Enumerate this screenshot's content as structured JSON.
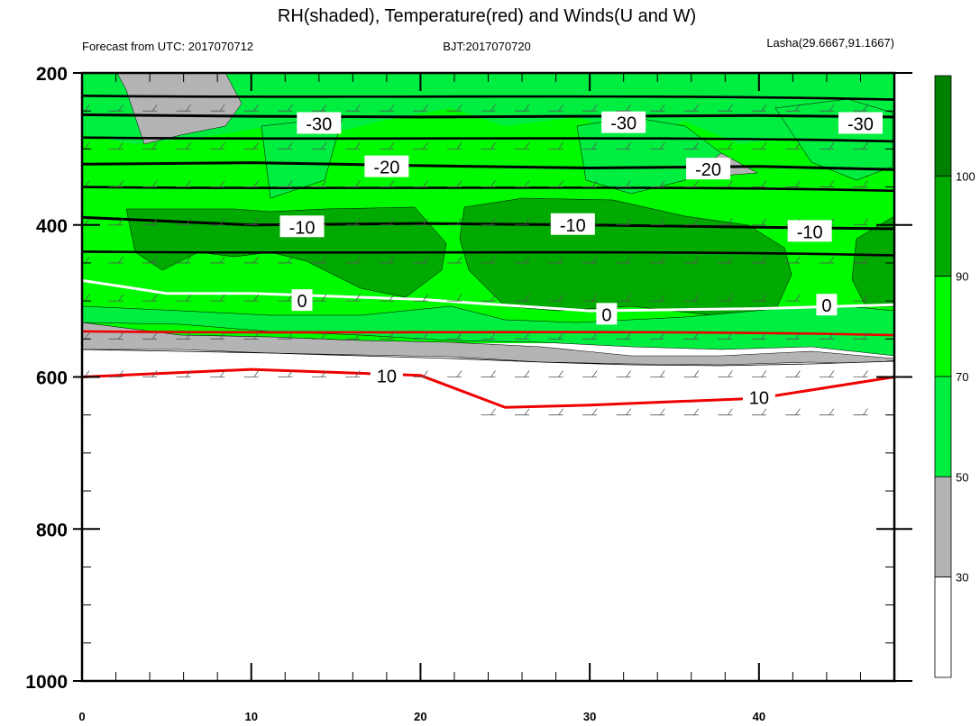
{
  "title": "RH(shaded), Temperature(red) and Winds(U and W)",
  "subtitle_left": "Forecast from UTC: 2017070712",
  "subtitle_center": "BJT:2017070720",
  "subtitle_right": "Lasha(29.6667,91.1667)",
  "colors": {
    "rh_0_30": "#ffffff",
    "rh_30_50": "#b4b4b4",
    "rh_50_70": "#00ee40",
    "rh_70_90": "#00fa00",
    "rh_90_100": "#00aa00",
    "rh_100_plus": "#008000",
    "temperature_positive": "#ee0000",
    "temperature_zero": "#ffffff",
    "temperature_negative": "#000000"
  },
  "chart_data": {
    "type": "contour",
    "x": {
      "min": 0,
      "max": 48,
      "ticks": [
        0,
        10,
        20,
        30,
        40
      ],
      "tick_labels": [
        "0",
        "10",
        "20",
        "30",
        "40"
      ]
    },
    "y": {
      "min": 200,
      "max": 1000,
      "reversed": true,
      "ticks": [
        200,
        400,
        600,
        800,
        1000
      ],
      "tick_labels": [
        "200",
        "400",
        "600",
        "800",
        "1000"
      ]
    },
    "colorbar": {
      "labels": [
        "30",
        "50",
        "70",
        "90",
        "100"
      ],
      "boundaries": [
        30,
        50,
        70,
        90,
        100
      ]
    },
    "temperature_contours": [
      {
        "level": -30,
        "label": "-30",
        "points": [
          [
            0,
            255
          ],
          [
            10,
            257
          ],
          [
            20,
            258
          ],
          [
            30,
            257
          ],
          [
            40,
            256
          ],
          [
            48,
            258
          ]
        ],
        "label_positions": [
          [
            14,
            267
          ],
          [
            32,
            266
          ],
          [
            46,
            267
          ]
        ]
      },
      {
        "level": -20,
        "label": "-20",
        "points": [
          [
            0,
            320
          ],
          [
            10,
            318
          ],
          [
            20,
            322
          ],
          [
            30,
            325
          ],
          [
            40,
            323
          ],
          [
            48,
            327
          ]
        ],
        "label_positions": [
          [
            18,
            324
          ],
          [
            37,
            327
          ]
        ]
      },
      {
        "level": -10,
        "label": "-10",
        "points": [
          [
            0,
            390
          ],
          [
            10,
            400
          ],
          [
            20,
            398
          ],
          [
            30,
            400
          ],
          [
            40,
            403
          ],
          [
            48,
            405
          ]
        ],
        "label_positions": [
          [
            13,
            403
          ],
          [
            29,
            400
          ],
          [
            43,
            409
          ]
        ]
      },
      {
        "level": 0,
        "label": "0",
        "points": [
          [
            0,
            473
          ],
          [
            5,
            490
          ],
          [
            10,
            490
          ],
          [
            20,
            498
          ],
          [
            30,
            513
          ],
          [
            40,
            510
          ],
          [
            48,
            505
          ]
        ],
        "label_positions": [
          [
            13,
            500
          ],
          [
            31,
            518
          ],
          [
            44,
            506
          ]
        ]
      },
      {
        "level": 10,
        "label": "10",
        "points": [
          [
            0,
            600
          ],
          [
            10,
            590
          ],
          [
            20,
            598
          ],
          [
            25,
            640
          ],
          [
            30,
            637
          ],
          [
            40,
            628
          ],
          [
            48,
            600
          ]
        ],
        "label_positions": [
          [
            18,
            599
          ],
          [
            40,
            627
          ]
        ]
      }
    ],
    "wind_barb_levels": [
      250,
      300,
      350,
      400,
      450,
      500,
      550,
      600,
      650
    ]
  }
}
